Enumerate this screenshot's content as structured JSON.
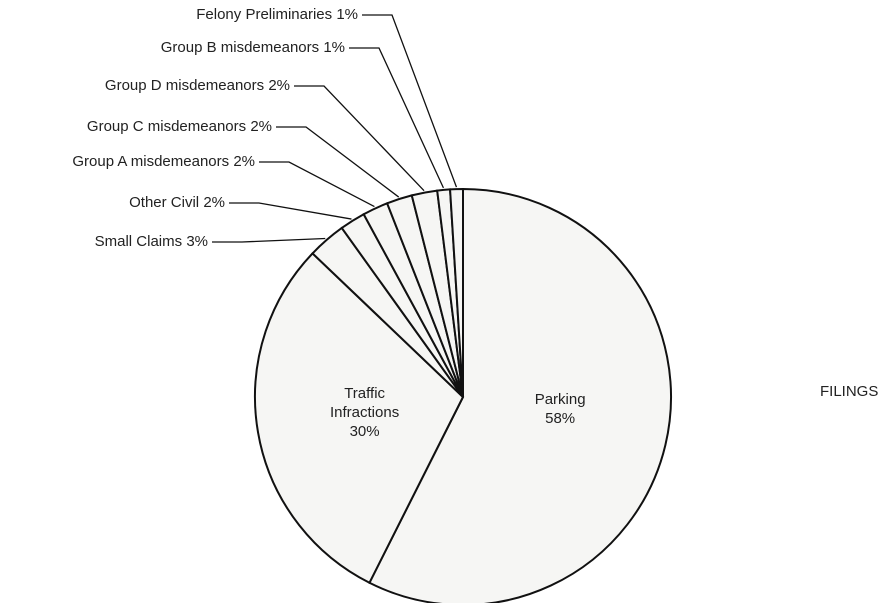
{
  "chart_data": {
    "type": "pie",
    "title": "FILINGS",
    "categories": [
      "Parking",
      "Traffic Infractions",
      "Small Claims",
      "Other Civil",
      "Group A misdemeanors",
      "Group C misdemeanors",
      "Group D misdemeanors",
      "Group B misdemeanors",
      "Felony Preliminaries"
    ],
    "values": [
      58,
      30,
      3,
      2,
      2,
      2,
      2,
      1,
      1
    ],
    "value_labels": [
      "58%",
      "30%",
      "3%",
      "2%",
      "2%",
      "2%",
      "2%",
      "1%",
      "1%"
    ]
  }
}
